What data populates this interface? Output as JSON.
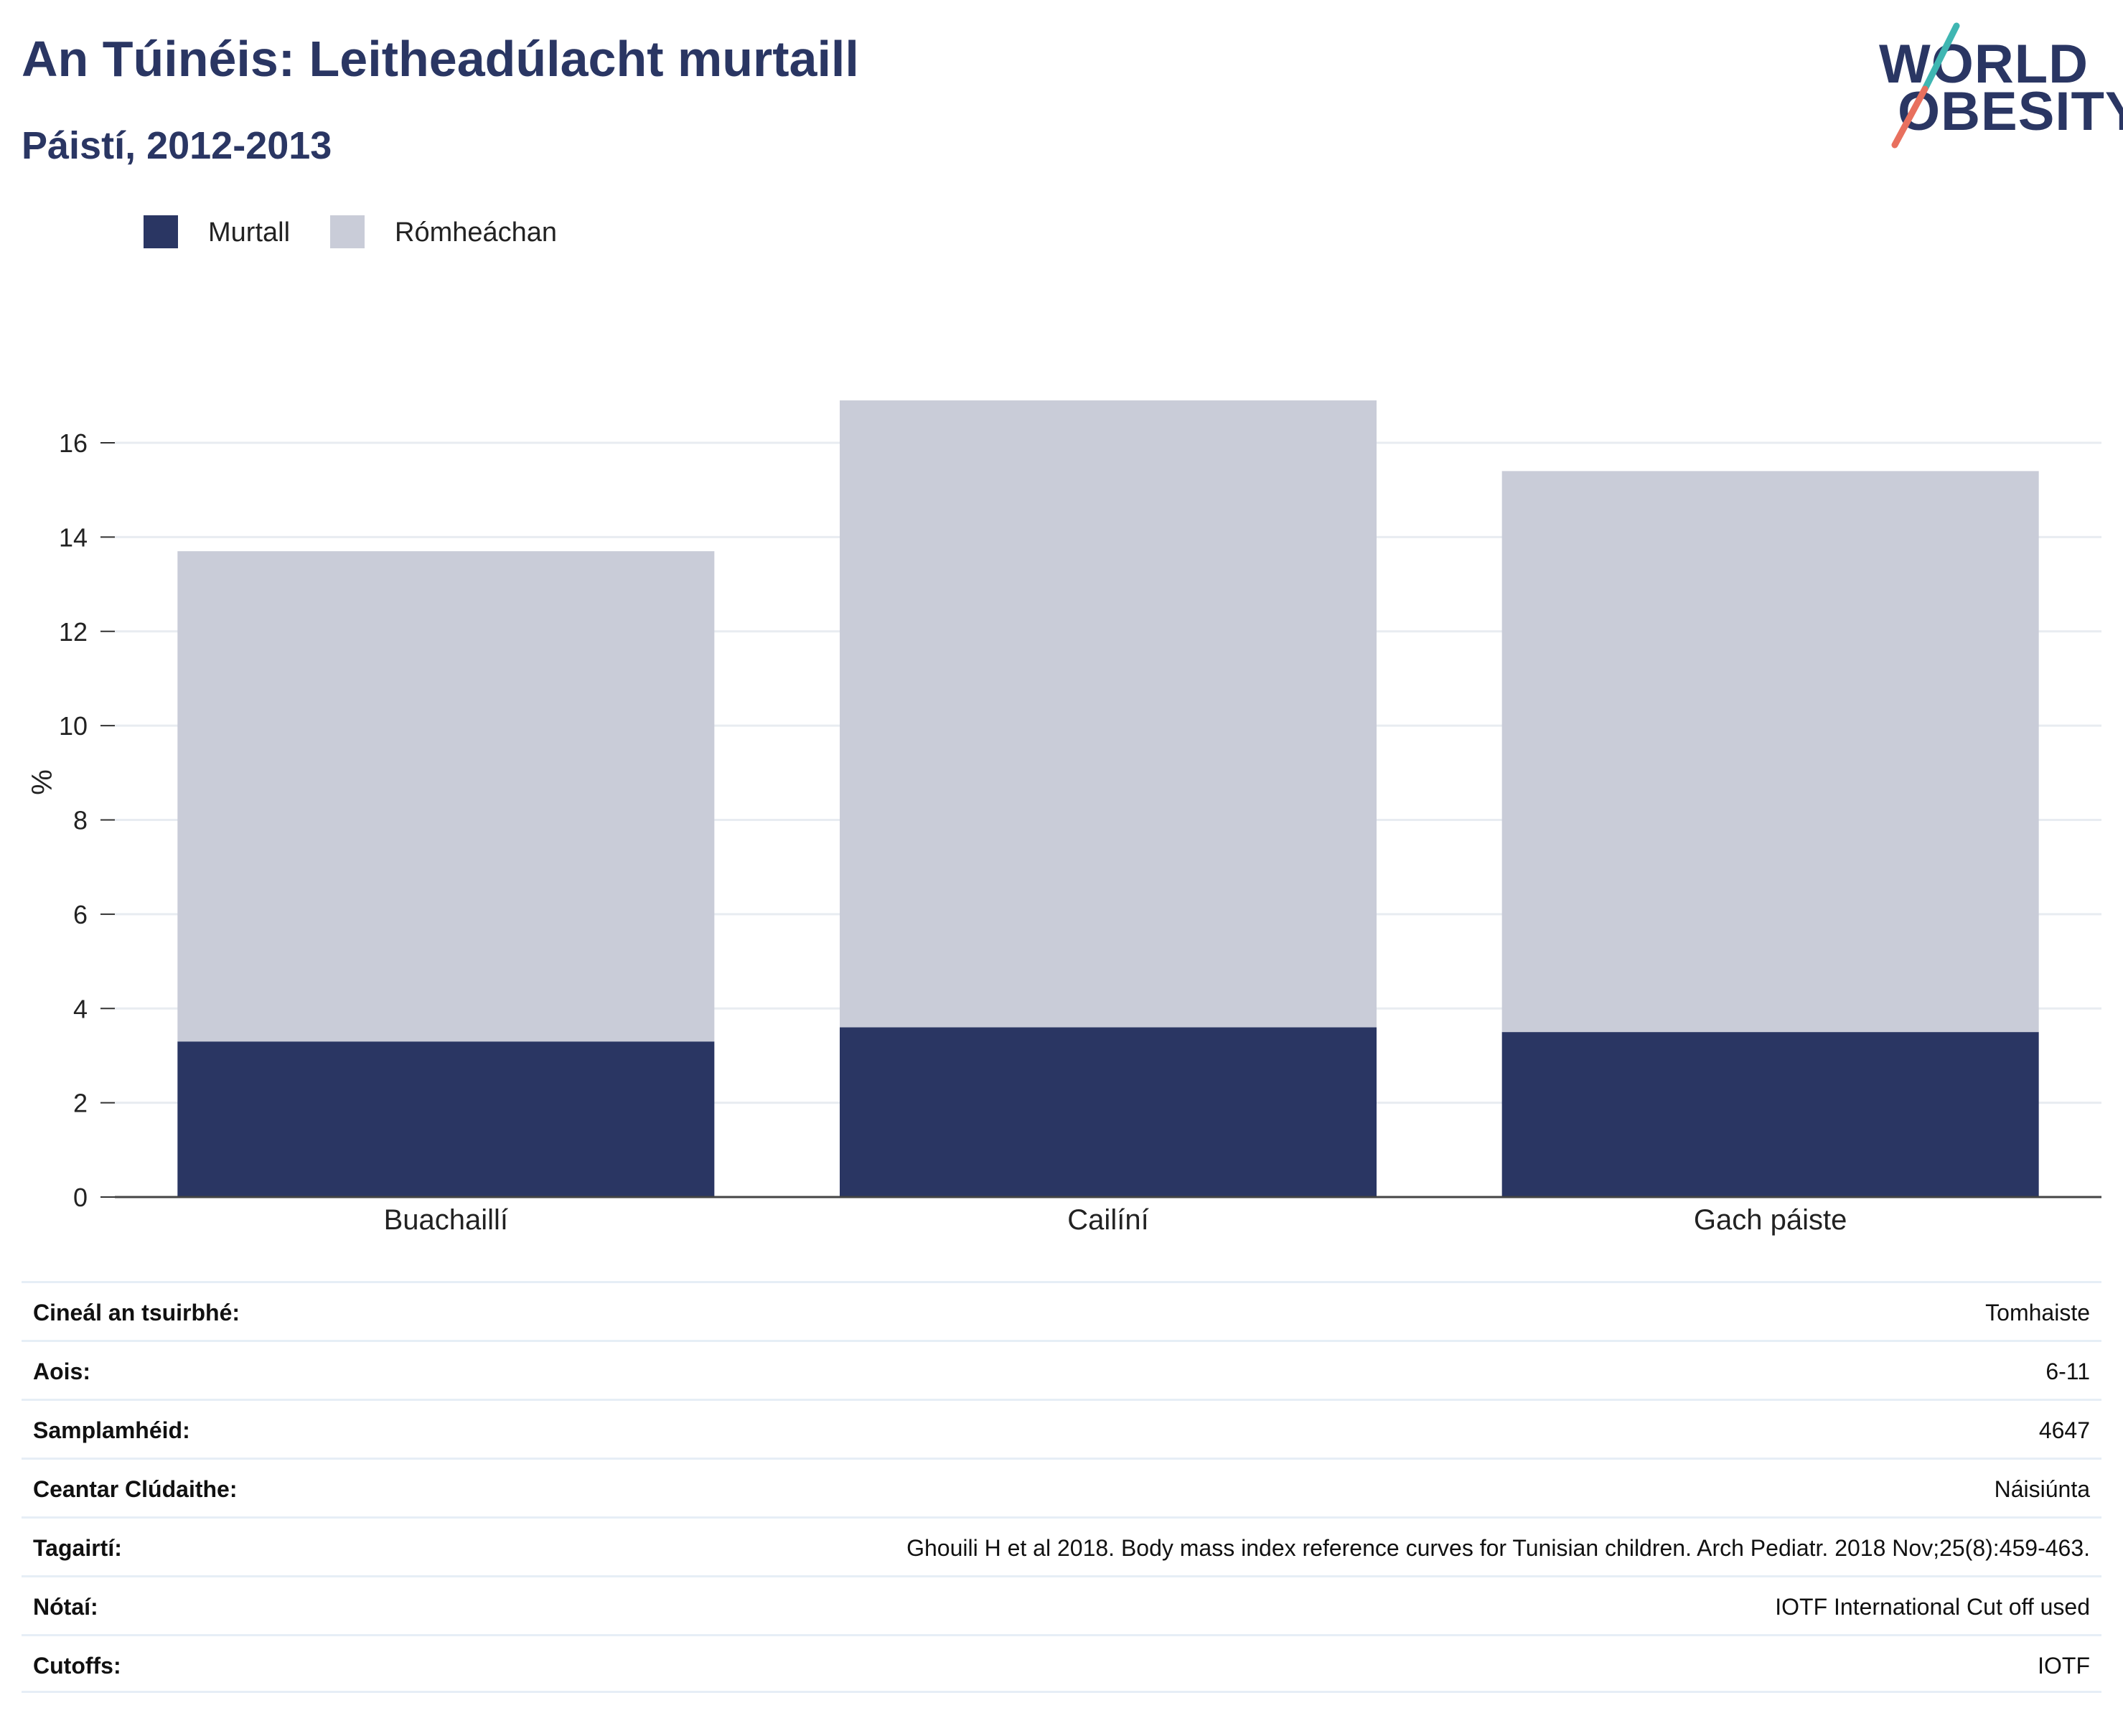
{
  "header": {
    "title": "An Túinéis: Leitheadúlacht murtaill",
    "subtitle": "Páistí, 2012-2013"
  },
  "logo": {
    "line1": "WORLD",
    "line2": "OBESITY",
    "slash_colors": [
      "#3fb6b2",
      "#e8705e"
    ]
  },
  "legend": [
    {
      "label": "Murtall",
      "color": "#2a3663"
    },
    {
      "label": "Rómheáchan",
      "color": "#c9ccd8"
    }
  ],
  "chart_data": {
    "type": "bar",
    "stacked": true,
    "categories": [
      "Buachaillí",
      "Cailíní",
      "Gach páiste"
    ],
    "series": [
      {
        "name": "Murtall",
        "color": "#2a3663",
        "values": [
          3.3,
          3.6,
          3.5
        ]
      },
      {
        "name": "Rómheáchan",
        "color": "#c9ccd8",
        "values": [
          10.4,
          13.3,
          11.9
        ]
      }
    ],
    "ylabel": "%",
    "yticks": [
      0,
      2,
      4,
      6,
      8,
      10,
      12,
      14,
      16
    ],
    "ylim": [
      0,
      17.4
    ],
    "grid": true
  },
  "info": [
    {
      "label": "Cineál an tsuirbhé:",
      "value": "Tomhaiste"
    },
    {
      "label": "Aois:",
      "value": "6-11"
    },
    {
      "label": "Samplamhéid:",
      "value": "4647"
    },
    {
      "label": "Ceantar Clúdaithe:",
      "value": "Náisiúnta"
    },
    {
      "label": "Tagairtí:",
      "value": "Ghouili H et al 2018. Body mass index reference curves for Tunisian children. Arch Pediatr. 2018 Nov;25(8):459-463."
    },
    {
      "label": "Nótaí:",
      "value": "IOTF International Cut off used"
    },
    {
      "label": "Cutoffs:",
      "value": "IOTF"
    }
  ]
}
